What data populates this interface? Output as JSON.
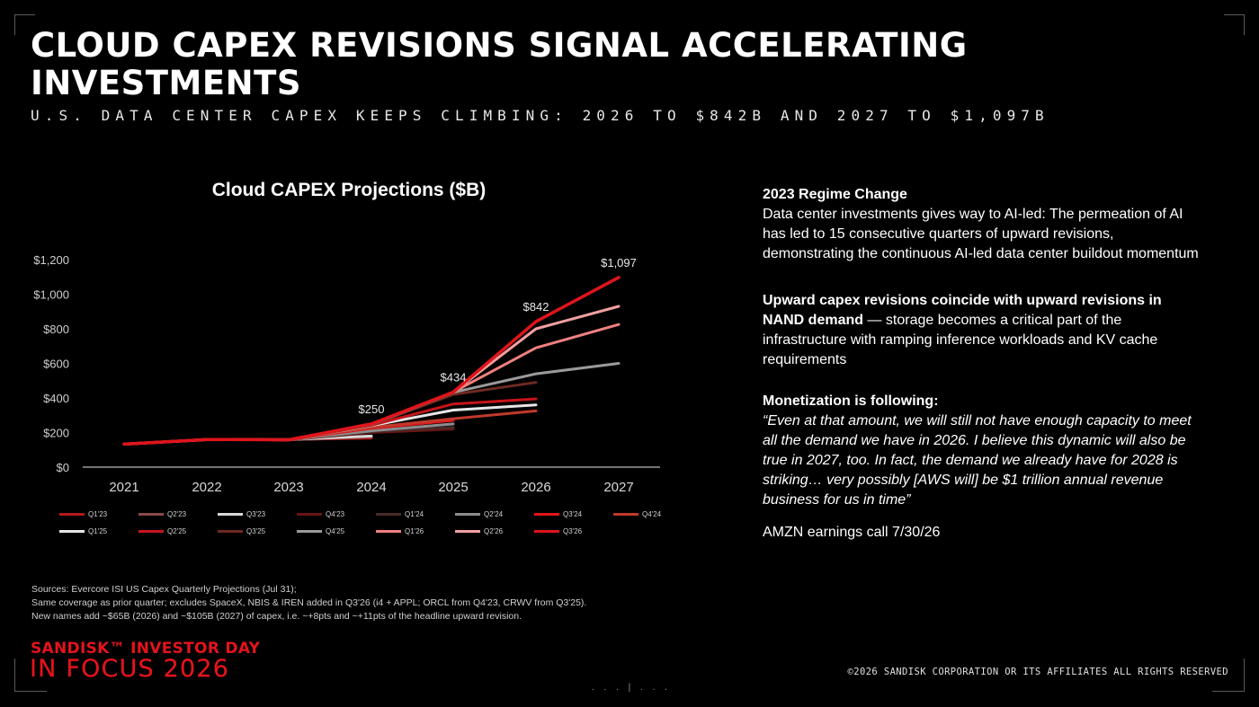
{
  "header": {
    "title": "CLOUD CAPEX REVISIONS SIGNAL ACCELERATING INVESTMENTS",
    "subtitle": "U.S. DATA CENTER CAPEX KEEPS CLIMBING: 2026 TO $842B AND 2027 TO $1,097B"
  },
  "chart_data": {
    "type": "line",
    "title": "Cloud CAPEX Projections ($B)",
    "xlabel": "",
    "ylabel": "",
    "x": [
      2021,
      2022,
      2023,
      2024,
      2025,
      2026,
      2027
    ],
    "y_ticks": [
      "$0",
      "$200",
      "$400",
      "$600",
      "$800",
      "$1,000",
      "$1,200"
    ],
    "ylim": [
      0,
      1200
    ],
    "grid": false,
    "legend_position": "bottom",
    "annotations": [
      {
        "x": 2024,
        "y": 250,
        "label": "$250"
      },
      {
        "x": 2025,
        "y": 434,
        "label": "$434"
      },
      {
        "x": 2026,
        "y": 842,
        "label": "$842"
      },
      {
        "x": 2027,
        "y": 1097,
        "label": "$1,097"
      }
    ],
    "series": [
      {
        "name": "Q1'23",
        "color": "#b3191e",
        "x": [
          2021,
          2022,
          2023,
          2024
        ],
        "values": [
          132,
          158,
          160,
          168
        ]
      },
      {
        "name": "Q2'23",
        "color": "#8a4a46",
        "x": [
          2021,
          2022,
          2023,
          2024
        ],
        "values": [
          134,
          160,
          158,
          175
        ]
      },
      {
        "name": "Q3'23",
        "color": "#d9d9d9",
        "x": [
          2021,
          2022,
          2023,
          2024
        ],
        "values": [
          133,
          159,
          160,
          180
        ]
      },
      {
        "name": "Q4'23",
        "color": "#6b1414",
        "x": [
          2021,
          2022,
          2023,
          2024,
          2025
        ],
        "values": [
          133,
          160,
          158,
          200,
          220
        ]
      },
      {
        "name": "Q1'24",
        "color": "#4a2a2a",
        "x": [
          2021,
          2022,
          2023,
          2024,
          2025
        ],
        "values": [
          133,
          160,
          158,
          205,
          230
        ]
      },
      {
        "name": "Q2'24",
        "color": "#8c8c8c",
        "x": [
          2021,
          2022,
          2023,
          2024,
          2025
        ],
        "values": [
          133,
          160,
          158,
          210,
          250
        ]
      },
      {
        "name": "Q3'24",
        "color": "#e4141b",
        "x": [
          2021,
          2022,
          2023,
          2024,
          2025
        ],
        "values": [
          133,
          160,
          158,
          225,
          270
        ]
      },
      {
        "name": "Q4'24",
        "color": "#c0392b",
        "x": [
          2021,
          2022,
          2023,
          2024,
          2025,
          2026
        ],
        "values": [
          133,
          160,
          158,
          230,
          280,
          325
        ]
      },
      {
        "name": "Q1'25",
        "color": "#e6e6e6",
        "x": [
          2021,
          2022,
          2023,
          2024,
          2025,
          2026
        ],
        "values": [
          133,
          160,
          158,
          240,
          330,
          360
        ]
      },
      {
        "name": "Q2'25",
        "color": "#c8141a",
        "x": [
          2021,
          2022,
          2023,
          2024,
          2025,
          2026
        ],
        "values": [
          133,
          160,
          158,
          242,
          365,
          395
        ]
      },
      {
        "name": "Q3'25",
        "color": "#6e2a22",
        "x": [
          2021,
          2022,
          2023,
          2024,
          2025,
          2026
        ],
        "values": [
          133,
          160,
          158,
          245,
          420,
          490
        ]
      },
      {
        "name": "Q4'25",
        "color": "#9a9a9a",
        "x": [
          2021,
          2022,
          2023,
          2024,
          2025,
          2026,
          2027
        ],
        "values": [
          133,
          160,
          158,
          248,
          432,
          540,
          600
        ]
      },
      {
        "name": "Q1'26",
        "color": "#f08080",
        "x": [
          2021,
          2022,
          2023,
          2024,
          2025,
          2026,
          2027
        ],
        "values": [
          133,
          160,
          158,
          250,
          434,
          690,
          825
        ]
      },
      {
        "name": "Q2'26",
        "color": "#f2a0a0",
        "x": [
          2021,
          2022,
          2023,
          2024,
          2025,
          2026,
          2027
        ],
        "values": [
          133,
          160,
          158,
          250,
          434,
          800,
          930
        ]
      },
      {
        "name": "Q3'26",
        "color": "#e0141b",
        "x": [
          2021,
          2022,
          2023,
          2024,
          2025,
          2026,
          2027
        ],
        "values": [
          133,
          160,
          158,
          250,
          434,
          842,
          1097
        ]
      }
    ]
  },
  "panel": {
    "p1_head": "2023 Regime Change",
    "p1_body": "Data center investments gives way to AI-led: The permeation of AI has led to 15 consecutive quarters of upward revisions, demonstrating the continuous AI-led data center buildout momentum",
    "p2_head": "Upward capex revisions coincide with upward revisions in NAND demand",
    "p2_body": " — storage becomes a critical part of the infrastructure with ramping inference workloads and KV cache requirements",
    "p3_head": "Monetization is following:",
    "p3_quote": "“Even at that amount, we will still not have enough capacity to meet all the demand we have in 2026. I believe this dynamic will also be true in 2027, too. In fact, the demand we already have for 2028 is striking… very possibly [AWS will] be $1 trillion annual revenue business for us in time”",
    "p4": "AMZN earnings call 7/30/26"
  },
  "sources": {
    "line1": "Sources: Evercore ISI US Capex Quarterly Projections (Jul 31);",
    "line2": "Same coverage as prior quarter; excludes SpaceX, NBIS & IREN added in Q3'26 (i4 + APPL; ORCL from Q4'23, CRWV from Q3'25).",
    "line3": "New names add ~$65B (2026) and ~$105B (2027) of capex, i.e. ~+8pts and ~+11pts of the headline upward revision."
  },
  "footer": {
    "brand_line1": "SANDISK™ INVESTOR DAY",
    "brand_line2": "IN FOCUS 2026",
    "copyright": "©2026 SANDISK CORPORATION OR ITS AFFILIATES ALL RIGHTS RESERVED",
    "pager": ". . . | . . ."
  },
  "colors": {
    "background": "#000000",
    "accent_red": "#e4141b"
  }
}
